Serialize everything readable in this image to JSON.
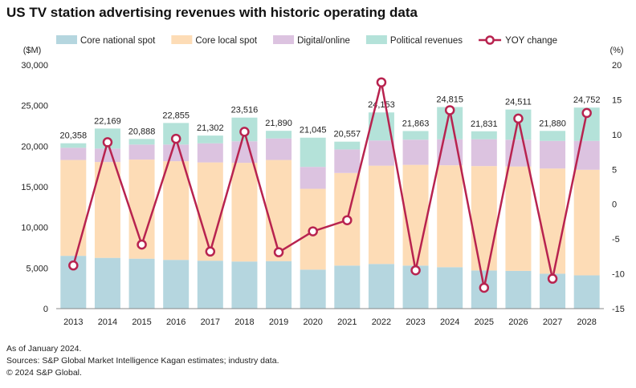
{
  "title": "US TV station advertising revenues with historic operating data",
  "footnotes": [
    "As of January 2024.",
    "Sources: S&P Global Market Intelligence Kagan estimates; industry data.",
    "© 2024 S&P Global."
  ],
  "chart_data": {
    "type": "bar",
    "stacked": true,
    "categories": [
      "2013",
      "2014",
      "2015",
      "2016",
      "2017",
      "2018",
      "2019",
      "2020",
      "2021",
      "2022",
      "2023",
      "2024",
      "2025",
      "2026",
      "2027",
      "2028"
    ],
    "series": [
      {
        "name": "Core national spot",
        "color": "#b5d6df",
        "values": [
          6500,
          6250,
          6150,
          6000,
          5900,
          5800,
          5850,
          4800,
          5300,
          5500,
          5300,
          5100,
          4700,
          4650,
          4300,
          4100
        ]
      },
      {
        "name": "Core local spot",
        "color": "#fddcb6",
        "values": [
          11800,
          11800,
          12200,
          12150,
          12100,
          12150,
          12450,
          9950,
          11400,
          12100,
          12400,
          12550,
          12850,
          12850,
          12950,
          13000
        ]
      },
      {
        "name": "Digital/online",
        "color": "#dcc3e0",
        "values": [
          1500,
          1650,
          1850,
          2050,
          2350,
          2650,
          2650,
          2700,
          2900,
          3100,
          3100,
          3200,
          3300,
          3300,
          3400,
          3550
        ]
      },
      {
        "name": "Political revenues",
        "color": "#b4e2d9",
        "values": [
          558,
          2469,
          688,
          2655,
          952,
          2916,
          940,
          3595,
          957,
          3453,
          1063,
          3965,
          981,
          3711,
          1230,
          4102
        ]
      }
    ],
    "totals": [
      "20,358",
      "22,169",
      "20,888",
      "22,855",
      "21,302",
      "23,516",
      "21,890",
      "21,045",
      "20,557",
      "24,153",
      "21,863",
      "24,815",
      "21,831",
      "24,511",
      "21,880",
      "24,752"
    ],
    "line_series": {
      "name": "YOY change",
      "color": "#b8234f",
      "axis": "right",
      "values": [
        -8.8,
        8.9,
        -5.8,
        9.4,
        -6.8,
        10.4,
        -6.9,
        -3.9,
        -2.3,
        17.5,
        -9.5,
        13.5,
        -12.0,
        12.3,
        -10.7,
        13.1
      ]
    },
    "y_left": {
      "label": "($M)",
      "min": 0,
      "max": 30000,
      "ticks": [
        "0",
        "5,000",
        "10,000",
        "15,000",
        "20,000",
        "25,000",
        "30,000"
      ]
    },
    "y_right": {
      "label": "(%)",
      "min": -15,
      "max": 20,
      "ticks": [
        "-15",
        "-10",
        "-5",
        "0",
        "5",
        "10",
        "15",
        "20"
      ]
    },
    "grid": false,
    "legend_position": "top"
  }
}
